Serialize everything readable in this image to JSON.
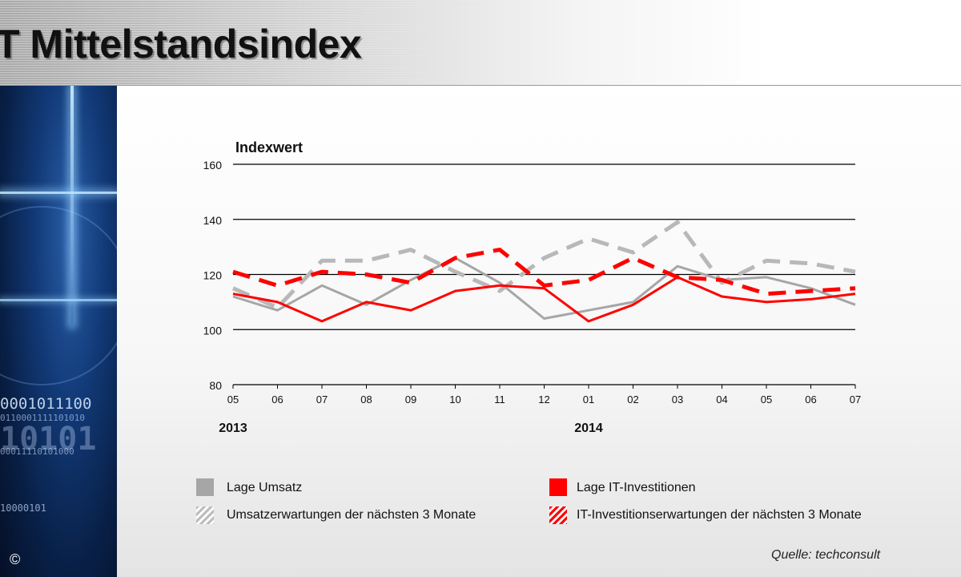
{
  "header": {
    "title": "T Mittelstandsindex"
  },
  "sidebar": {
    "binary_lines": [
      "0001011100",
      "0110001111101010",
      "10101",
      "00011110101000",
      "10000101"
    ],
    "copyright": "©"
  },
  "chart_data": {
    "type": "line",
    "title": "",
    "ylabel": "Indexwert",
    "xlabel": "",
    "ylim": [
      80,
      160
    ],
    "yticks": [
      80,
      100,
      120,
      140,
      160
    ],
    "grid": true,
    "categories": [
      "05",
      "06",
      "07",
      "08",
      "09",
      "10",
      "11",
      "12",
      "01",
      "02",
      "03",
      "04",
      "05",
      "06",
      "07"
    ],
    "year_labels": [
      {
        "label": "2013",
        "index": 0
      },
      {
        "label": "2014",
        "index": 8
      }
    ],
    "series": [
      {
        "name": "Lage Umsatz",
        "color": "#a6a6a6",
        "style": "solid",
        "values": [
          112,
          107,
          116,
          109,
          118,
          126,
          117,
          104,
          107,
          110,
          123,
          118,
          119,
          115,
          109
        ]
      },
      {
        "name": "Umsatzerwartungen der nächsten 3 Monate",
        "color": "#b8b8b8",
        "style": "dashed",
        "values": [
          115,
          108,
          125,
          125,
          129,
          121,
          114,
          126,
          133,
          128,
          139,
          117,
          125,
          124,
          121
        ]
      },
      {
        "name": "Lage IT-Investitionen",
        "color": "#ff0000",
        "style": "solid",
        "values": [
          113,
          110,
          103,
          110,
          107,
          114,
          116,
          115,
          103,
          109,
          119,
          112,
          110,
          111,
          113
        ]
      },
      {
        "name": "IT-Investitionserwartungen der nächsten 3 Monate",
        "color": "#ff0000",
        "style": "dashed",
        "values": [
          121,
          116,
          121,
          120,
          117,
          126,
          129,
          116,
          118,
          126,
          119,
          118,
          113,
          114,
          115
        ]
      }
    ],
    "legend_position": "bottom"
  },
  "source": "Quelle: techconsult"
}
